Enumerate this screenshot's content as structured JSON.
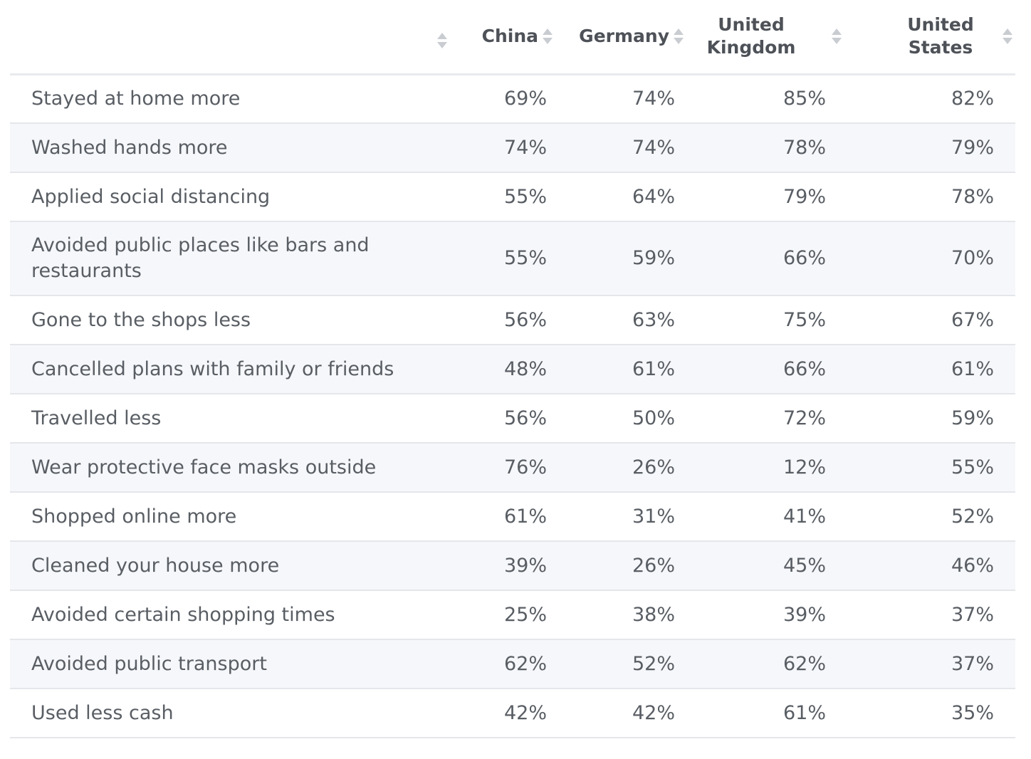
{
  "chart_data": {
    "type": "table",
    "columns": [
      "",
      "China",
      "Germany",
      "United Kingdom",
      "United States"
    ],
    "rows": [
      {
        "label": "Stayed at home more",
        "values": [
          "69%",
          "74%",
          "85%",
          "82%"
        ]
      },
      {
        "label": "Washed hands more",
        "values": [
          "74%",
          "74%",
          "78%",
          "79%"
        ]
      },
      {
        "label": "Applied social distancing",
        "values": [
          "55%",
          "64%",
          "79%",
          "78%"
        ]
      },
      {
        "label": "Avoided public places like bars and restaurants",
        "values": [
          "55%",
          "59%",
          "66%",
          "70%"
        ]
      },
      {
        "label": "Gone to the shops less",
        "values": [
          "56%",
          "63%",
          "75%",
          "67%"
        ]
      },
      {
        "label": "Cancelled plans with family or friends",
        "values": [
          "48%",
          "61%",
          "66%",
          "61%"
        ]
      },
      {
        "label": "Travelled less",
        "values": [
          "56%",
          "50%",
          "72%",
          "59%"
        ]
      },
      {
        "label": "Wear protective face masks outside",
        "values": [
          "76%",
          "26%",
          "12%",
          "55%"
        ]
      },
      {
        "label": "Shopped online more",
        "values": [
          "61%",
          "31%",
          "41%",
          "52%"
        ]
      },
      {
        "label": "Cleaned your house more",
        "values": [
          "39%",
          "26%",
          "45%",
          "46%"
        ]
      },
      {
        "label": "Avoided certain shopping times",
        "values": [
          "25%",
          "38%",
          "39%",
          "37%"
        ]
      },
      {
        "label": "Avoided public transport",
        "values": [
          "62%",
          "52%",
          "62%",
          "37%"
        ]
      },
      {
        "label": "Used less cash",
        "values": [
          "42%",
          "42%",
          "61%",
          "35%"
        ]
      }
    ]
  }
}
